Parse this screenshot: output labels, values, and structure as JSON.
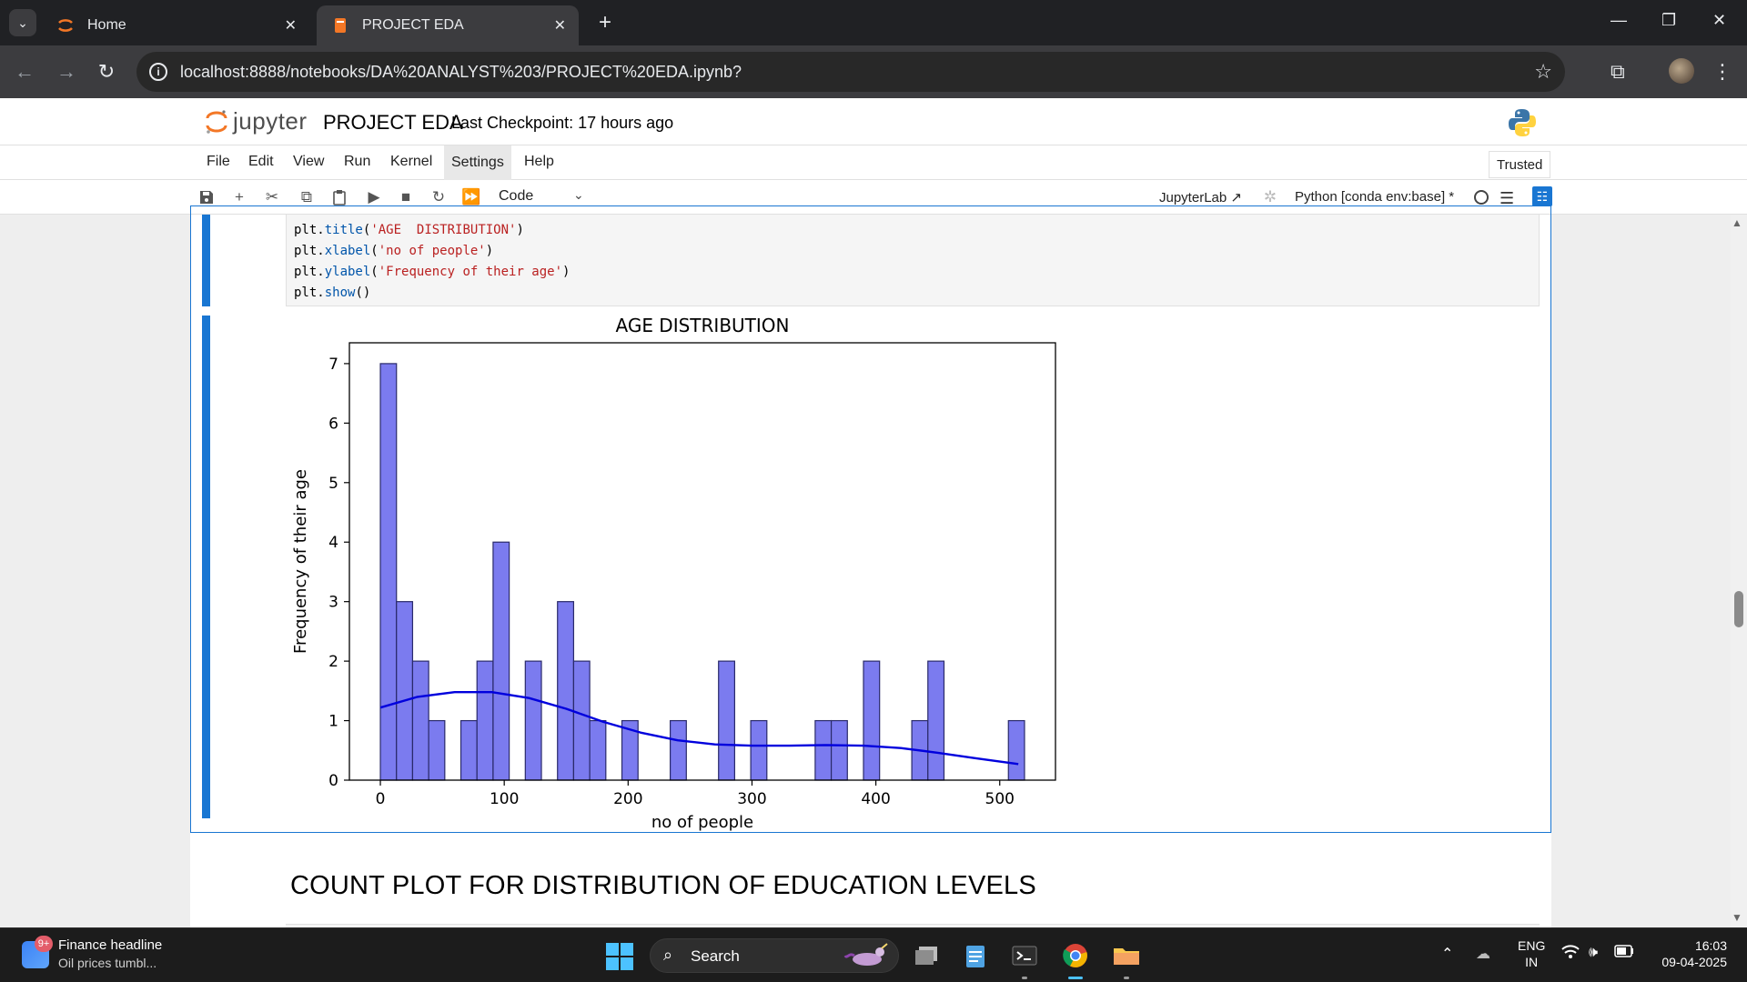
{
  "browser": {
    "tabs": [
      {
        "title": "Home",
        "active": false
      },
      {
        "title": "PROJECT EDA",
        "active": true
      }
    ],
    "url": "localhost:8888/notebooks/DA%20ANALYST%203/PROJECT%20EDA.ipynb?"
  },
  "jupyter": {
    "logo_text": "jupyter",
    "notebook_title": "PROJECT EDA",
    "checkpoint": "Last Checkpoint: 17 hours ago",
    "menu": [
      "File",
      "Edit",
      "View",
      "Run",
      "Kernel",
      "Settings",
      "Help"
    ],
    "trusted": "Trusted",
    "cell_type": "Code",
    "jupyterlab_link": "JupyterLab",
    "kernel": "Python [conda env:base] *"
  },
  "code_cell": {
    "lines": [
      {
        "obj": "plt.",
        "fn": "title",
        "open": "(",
        "str": "'AGE  DISTRIBUTION'",
        "close": ")"
      },
      {
        "obj": "plt.",
        "fn": "xlabel",
        "open": "(",
        "str": "'no of people'",
        "close": ")"
      },
      {
        "obj": "plt.",
        "fn": "ylabel",
        "open": "(",
        "str": "'Frequency of their age'",
        "close": ")"
      },
      {
        "obj": "plt.",
        "fn": "show",
        "open": "(",
        "str": "",
        "close": ")"
      }
    ]
  },
  "chart_data": {
    "type": "bar",
    "title": "AGE  DISTRIBUTION",
    "xlabel": "no of people",
    "ylabel": "Frequency of their age",
    "xlim": [
      -25,
      545
    ],
    "ylim": [
      0,
      7.35
    ],
    "xticks": [
      0,
      100,
      200,
      300,
      400,
      500
    ],
    "yticks": [
      0,
      1,
      2,
      3,
      4,
      5,
      6,
      7
    ],
    "bin_width": 13,
    "bins": [
      {
        "start": 0,
        "count": 7
      },
      {
        "start": 13,
        "count": 3
      },
      {
        "start": 26,
        "count": 2
      },
      {
        "start": 39,
        "count": 1
      },
      {
        "start": 65,
        "count": 1
      },
      {
        "start": 78,
        "count": 2
      },
      {
        "start": 91,
        "count": 4
      },
      {
        "start": 117,
        "count": 2
      },
      {
        "start": 143,
        "count": 3
      },
      {
        "start": 156,
        "count": 2
      },
      {
        "start": 169,
        "count": 1
      },
      {
        "start": 195,
        "count": 1
      },
      {
        "start": 234,
        "count": 1
      },
      {
        "start": 273,
        "count": 2
      },
      {
        "start": 299,
        "count": 1
      },
      {
        "start": 351,
        "count": 1
      },
      {
        "start": 364,
        "count": 1
      },
      {
        "start": 390,
        "count": 2
      },
      {
        "start": 429,
        "count": 1
      },
      {
        "start": 442,
        "count": 2
      },
      {
        "start": 507,
        "count": 1
      }
    ],
    "kde": {
      "x": [
        0,
        30,
        60,
        90,
        120,
        150,
        180,
        210,
        240,
        270,
        300,
        330,
        360,
        390,
        420,
        450,
        480,
        515
      ],
      "y": [
        1.22,
        1.4,
        1.48,
        1.48,
        1.38,
        1.2,
        0.98,
        0.8,
        0.67,
        0.6,
        0.58,
        0.58,
        0.59,
        0.58,
        0.54,
        0.46,
        0.37,
        0.27
      ]
    },
    "bar_color": "#7b7bef",
    "bar_edge": "#2a2a6a",
    "kde_color": "#0000dd",
    "grid": false
  },
  "markdown_heading": "COUNT PLOT FOR DISTRIBUTION OF EDUCATION LEVELS",
  "taskbar": {
    "news_badge": "9+",
    "news_title": "Finance headline",
    "news_sub": "Oil prices tumbl...",
    "search_label": "Search",
    "lang_line1": "ENG",
    "lang_line2": "IN",
    "time": "16:03",
    "date": "09-04-2025"
  }
}
